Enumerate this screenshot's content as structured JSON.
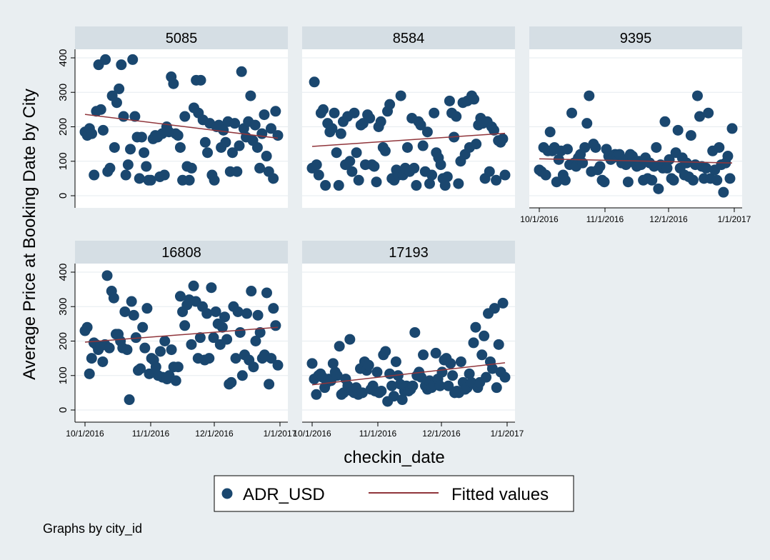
{
  "figure": {
    "ylabel": "Average Price at Booking Date by City",
    "xlabel": "checkin_date",
    "note": "Graphs by city_id",
    "legend": {
      "placement": "bottom",
      "scatter_label": "ADR_USD",
      "line_label": "Fitted values"
    },
    "colors": {
      "panel_bg": "#ffffff",
      "page_bg": "#e9eef1",
      "header_bg": "#d5dee4",
      "marker": "#1a476f",
      "fit_line": "#90353b",
      "grid": "#e5ebef"
    }
  },
  "chart_data": {
    "type": "scatter",
    "x_axis": {
      "type": "date",
      "range": [
        "2016-10-01",
        "2016-12-31"
      ],
      "ticks": [
        "2016-10-01",
        "2016-11-01",
        "2016-12-01",
        "2017-01-01"
      ],
      "tick_labels": [
        "10/1/2016",
        "11/1/2016",
        "12/1/2016",
        "1/1/2017"
      ]
    },
    "y_axis": {
      "range": [
        0,
        400
      ],
      "ticks": [
        0,
        100,
        200,
        300,
        400
      ]
    },
    "grid": true,
    "panels": [
      {
        "title": "5085",
        "fit": [
          236,
          167
        ],
        "y": [
          185,
          175,
          195,
          180,
          60,
          245,
          380,
          250,
          190,
          395,
          70,
          80,
          290,
          140,
          270,
          310,
          380,
          230,
          60,
          90,
          135,
          395,
          230,
          170,
          50,
          170,
          125,
          85,
          45,
          45,
          165,
          175,
          170,
          55,
          180,
          60,
          200,
          185,
          345,
          325,
          180,
          175,
          140,
          45,
          230,
          85,
          45,
          80,
          255,
          335,
          240,
          335,
          220,
          155,
          125,
          210,
          60,
          45,
          200,
          205,
          140,
          190,
          155,
          215,
          70,
          125,
          210,
          70,
          145,
          360,
          195,
          170,
          215,
          290,
          160,
          205,
          140,
          80,
          180,
          235,
          115,
          70,
          195,
          50,
          245,
          175
        ]
      },
      {
        "title": "8584",
        "fit": [
          143,
          181
        ],
        "y": [
          80,
          330,
          90,
          60,
          240,
          250,
          30,
          210,
          185,
          195,
          240,
          125,
          30,
          180,
          215,
          90,
          230,
          100,
          70,
          240,
          125,
          45,
          205,
          210,
          90,
          235,
          225,
          90,
          85,
          40,
          200,
          215,
          140,
          130,
          245,
          265,
          50,
          45,
          75,
          60,
          290,
          60,
          80,
          140,
          70,
          225,
          80,
          30,
          215,
          205,
          145,
          70,
          185,
          35,
          60,
          240,
          125,
          110,
          90,
          50,
          30,
          55,
          275,
          240,
          170,
          230,
          35,
          100,
          270,
          120,
          275,
          140,
          290,
          280,
          150,
          205,
          225,
          210,
          50,
          215,
          70,
          200,
          190,
          45,
          160,
          155,
          165,
          60
        ]
      },
      {
        "title": "9395",
        "fit": [
          107,
          95
        ],
        "y": [
          75,
          70,
          140,
          60,
          130,
          185,
          130,
          140,
          40,
          105,
          130,
          60,
          45,
          135,
          90,
          240,
          95,
          85,
          110,
          120,
          95,
          140,
          210,
          290,
          70,
          150,
          140,
          75,
          85,
          45,
          40,
          135,
          115,
          105,
          110,
          120,
          115,
          120,
          95,
          105,
          90,
          40,
          120,
          115,
          95,
          85,
          100,
          90,
          45,
          110,
          50,
          95,
          45,
          85,
          140,
          20,
          90,
          80,
          215,
          80,
          105,
          50,
          45,
          125,
          190,
          80,
          110,
          60,
          95,
          55,
          175,
          45,
          90,
          290,
          230,
          85,
          50,
          80,
          240,
          50,
          130,
          75,
          45,
          140,
          90,
          10,
          95,
          115,
          50,
          195
        ]
      },
      {
        "title": "16808",
        "fit": [
          197,
          240
        ],
        "y": [
          230,
          240,
          105,
          150,
          195,
          190,
          175,
          185,
          140,
          190,
          390,
          180,
          345,
          325,
          220,
          220,
          200,
          180,
          285,
          175,
          30,
          315,
          275,
          210,
          115,
          120,
          240,
          180,
          295,
          105,
          150,
          145,
          125,
          100,
          170,
          95,
          200,
          90,
          100,
          175,
          125,
          85,
          125,
          330,
          285,
          245,
          305,
          320,
          190,
          360,
          315,
          150,
          210,
          300,
          145,
          280,
          150,
          355,
          210,
          285,
          250,
          190,
          240,
          270,
          205,
          75,
          80,
          300,
          150,
          285,
          225,
          100,
          160,
          280,
          145,
          345,
          125,
          200,
          275,
          225,
          150,
          160,
          340,
          75,
          150,
          295,
          245,
          130
        ]
      },
      {
        "title": "17193",
        "fit": [
          73,
          137
        ],
        "y": [
          135,
          90,
          45,
          100,
          105,
          95,
          65,
          80,
          90,
          85,
          135,
          110,
          100,
          185,
          45,
          50,
          90,
          70,
          205,
          55,
          50,
          65,
          45,
          120,
          50,
          140,
          115,
          130,
          60,
          70,
          55,
          110,
          50,
          55,
          160,
          170,
          25,
          105,
          70,
          40,
          140,
          100,
          75,
          30,
          55,
          70,
          55,
          60,
          70,
          225,
          100,
          110,
          95,
          160,
          70,
          60,
          85,
          65,
          75,
          165,
          90,
          70,
          110,
          145,
          150,
          70,
          135,
          100,
          50,
          55,
          50,
          140,
          80,
          60,
          65,
          105,
          80,
          195,
          240,
          65,
          80,
          160,
          215,
          95,
          280,
          140,
          120,
          295,
          65,
          190,
          110,
          310,
          95
        ]
      }
    ]
  }
}
